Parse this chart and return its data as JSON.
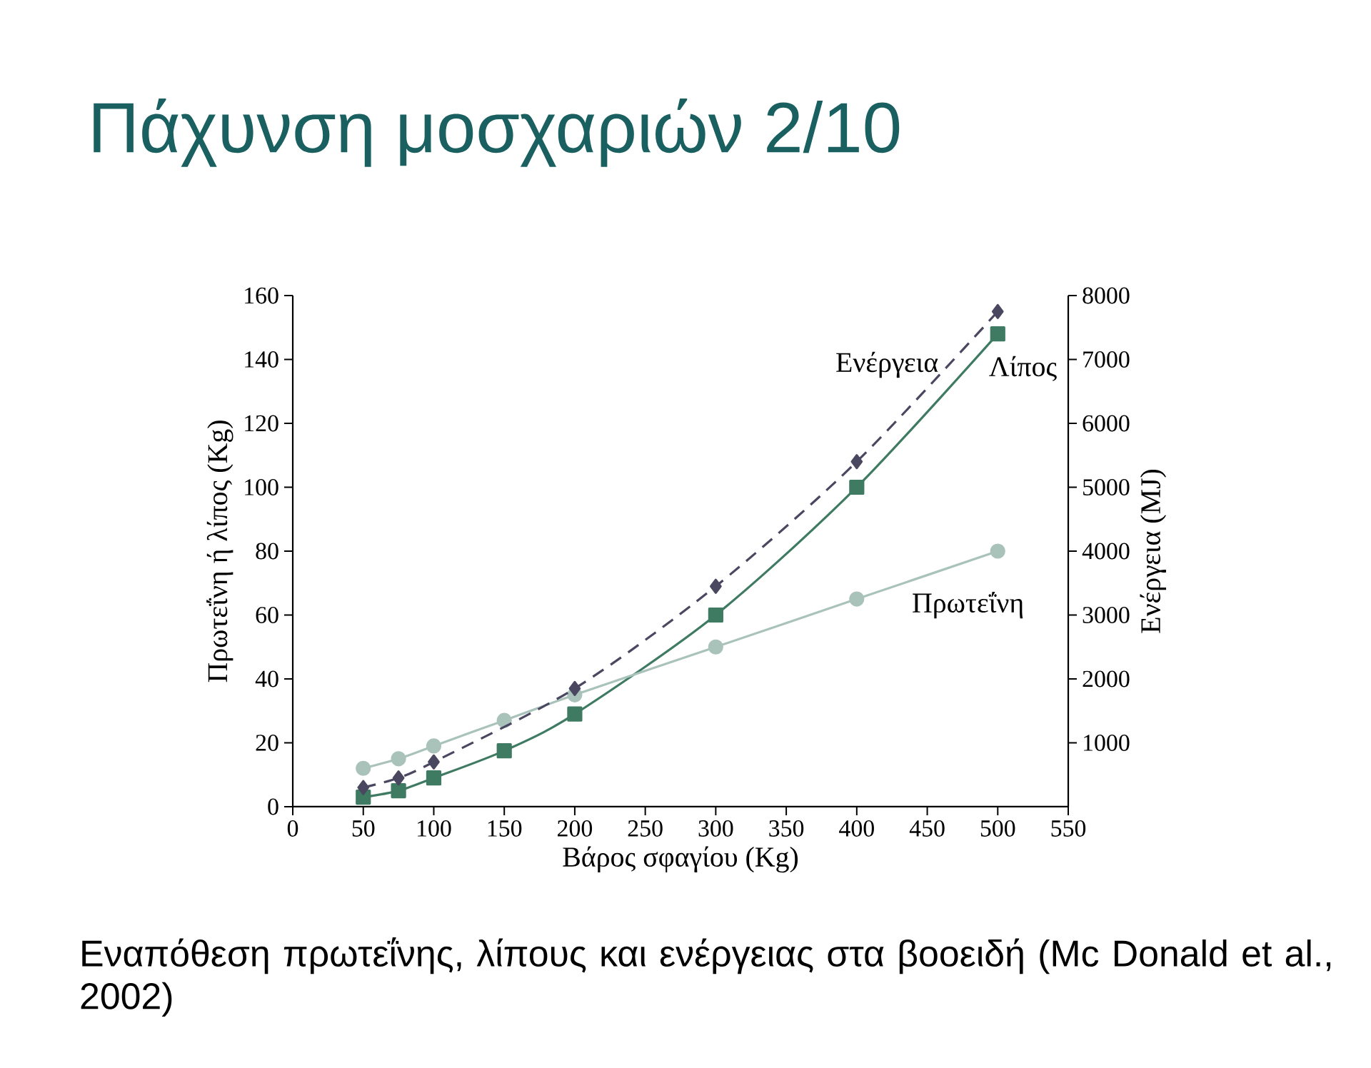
{
  "chart_data": {
    "type": "line",
    "title": "Πάχυνση μοσχαριών 2/10",
    "xlabel": "Βάρος σφαγίου (Kg)",
    "ylabel": "Πρωτεΐνη ή λίπος (Kg)",
    "y2label": "Ενέργεια (MJ)",
    "x": [
      50,
      75,
      100,
      150,
      200,
      300,
      400,
      500
    ],
    "series": [
      {
        "name": "Ενέργεια",
        "color": "#4a4760",
        "axis": "y2",
        "marker": "diamond",
        "line_style": "dashed",
        "x": [
          50,
          75,
          100,
          200,
          300,
          400,
          500
        ],
        "values": [
          300,
          450,
          700,
          1850,
          3450,
          5400,
          7750
        ]
      },
      {
        "name": "Λίπος",
        "color": "#3f7a62",
        "marker": "square",
        "line_style": "solid",
        "values": [
          3,
          5,
          9,
          17.5,
          29,
          60,
          100,
          148
        ]
      },
      {
        "name": "Πρωτεΐνη",
        "color": "#a9c2ba",
        "marker": "circle",
        "line_style": "solid",
        "values": [
          12,
          15,
          19,
          27,
          35,
          50,
          65,
          80
        ]
      }
    ],
    "xlim": [
      0,
      550
    ],
    "xticks": [
      0,
      50,
      100,
      150,
      200,
      250,
      300,
      350,
      400,
      450,
      500,
      550
    ],
    "ylim": [
      0,
      160
    ],
    "yticks": [
      0,
      20,
      40,
      60,
      80,
      100,
      120,
      140,
      160
    ],
    "y2lim": [
      0,
      8000
    ],
    "y2ticks": [
      1000,
      2000,
      3000,
      4000,
      5000,
      6000,
      7000,
      8000
    ],
    "grid": false,
    "annotations": [
      "Εναπόθεση πρωτεΐνης, λίπους και ενέργειας στα βοοειδή (Mc Donald et al., 2002)"
    ]
  }
}
